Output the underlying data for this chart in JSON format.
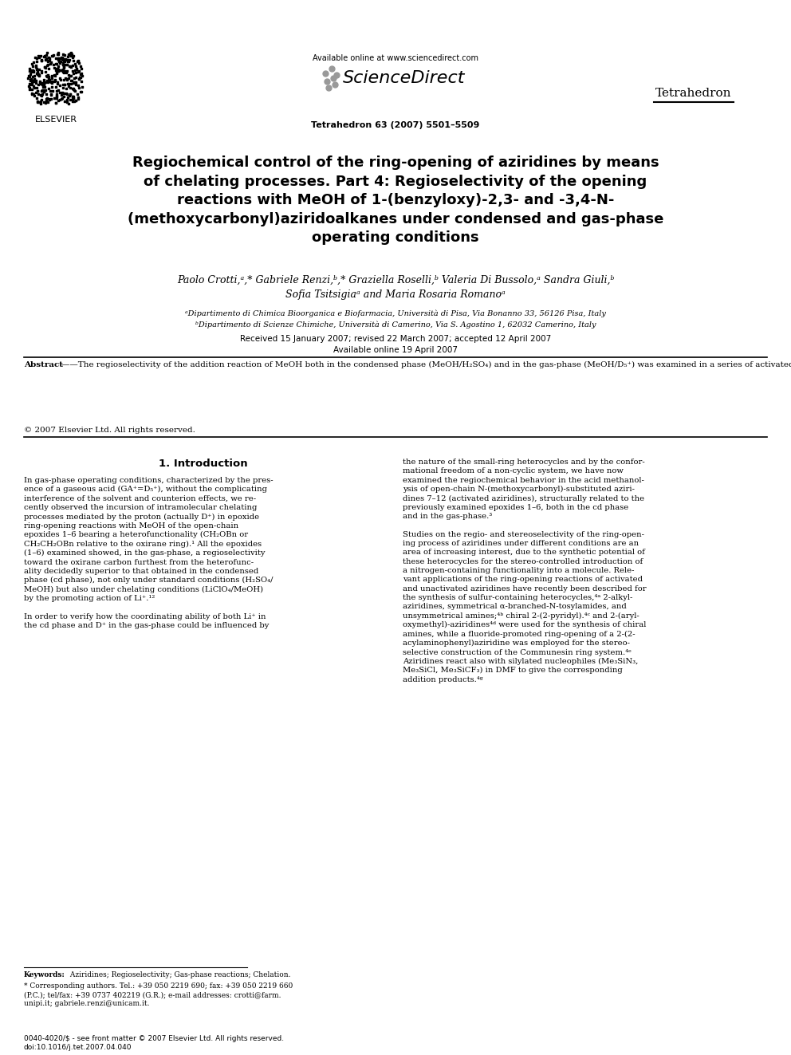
{
  "bg_color": "#ffffff",
  "page_width": 9.92,
  "page_height": 13.23,
  "dpi": 100,
  "header": {
    "available_online": "Available online at www.sciencedirect.com",
    "sciencedirect": "ScienceDirect",
    "journal_name": "Tetrahedron",
    "journal_issue": "Tetrahedron 63 (2007) 5501–5509",
    "elsevier": "ELSEVIER"
  },
  "title": "Regiochemical control of the ring-opening of aziridines by means\nof chelating processes. Part 4: Regioselectivity of the opening\nreactions with MeOH of 1-(benzyloxy)-2,3- and -3,4-⁠N-\n(methoxycarbonyl)aziridoalkanes under condensed and gas-phase\noperating conditions",
  "authors_line1": "Paolo Crotti,ᵃ,* Gabriele Renzi,ᵇ,* Graziella Roselli,ᵇ Valeria Di Bussolo,ᵃ Sandra Giuli,ᵇ",
  "authors_line2": "Sofia Tsitsigiaᵃ and Maria Rosaria Romanoᵃ",
  "affil_a": "ᵃDipartimento di Chimica Bioorganica e Biofarmacia, Università di Pisa, Via Bonanno 33, 56126 Pisa, Italy",
  "affil_b": "ᵇDipartimento di Scienze Chimiche, Università di Camerino, Via S. Agostino 1, 62032 Camerino, Italy",
  "received": "Received 15 January 2007; revised 22 March 2007; accepted 12 April 2007",
  "available": "Available online 19 April 2007",
  "abstract_bold": "Abstract",
  "abstract_text": "—The regioselectivity of the addition reaction of MeOH both in the condensed phase (MeOH/H₂SO₄) and in the gas-phase (MeOH/D₅⁺) was examined in a series of activated aziridines. The results indicate that gas-phase operating conditions are particularly favorable for the occurrence of D⁺-mediated chelated bidentate species, which influence the regioselectivity of the opening process. In the condensed phase, the chelating MeOH/LiClO₄ protocol turned out to be decidedly less effective for regioselectivity and also in determining the composition of the reaction mixture.",
  "copyright": "© 2007 Elsevier Ltd. All rights reserved.",
  "section1_title": "1. Introduction",
  "col_left_text": "In gas-phase operating conditions, characterized by the pres-\nence of a gaseous acid (GA⁺=D₅⁺), without the complicating\ninterference of the solvent and counterion effects, we re-\ncently observed the incursion of intramolecular chelating\nprocesses mediated by the proton (actually D⁺) in epoxide\nring-opening reactions with MeOH of the open-chain\nepoxides 1–6 bearing a heterofunctionality (CH₂OBn or\nCH₂CH₂OBn relative to the oxirane ring).¹ All the epoxides\n(1–6) examined showed, in the gas-phase, a regioselectivity\ntoward the oxirane carbon furthest from the heterofunc-\nality decidedly superior to that obtained in the condensed\nphase (cd phase), not only under standard conditions (H₂SO₄/\nMeOH) but also under chelating conditions (LiClO₄/MeOH)\nby the promoting action of Li⁺.¹²\n\nIn order to verify how the coordinating ability of both Li⁺ in\nthe cd phase and D⁺ in the gas-phase could be influenced by",
  "col_right_text": "the nature of the small-ring heterocycles and by the confor-\nmational freedom of a non-cyclic system, we have now\nexamined the regiochemical behavior in the acid methanol-\nysis of open-chain N-(methoxycarbonyl)-substituted aziri-\ndines 7–12 (activated aziridines), structurally related to the\npreviously examined epoxides 1–6, both in the cd phase\nand in the gas-phase.³\n\nStudies on the regio- and stereoselectivity of the ring-open-\ning process of aziridines under different conditions are an\narea of increasing interest, due to the synthetic potential of\nthese heterocycles for the stereo-controlled introduction of\na nitrogen-containing functionality into a molecule. Rele-\nvant applications of the ring-opening reactions of activated\nand unactivated aziridines have recently been described for\nthe synthesis of sulfur-containing heterocycles,⁴ᵃ 2-alkyl-\naziridines, symmetrical α-branched-N-tosylamides, and\nunsymmetrical amines;⁴ᵇ chiral 2-(2-pyridyl).⁴ᶜ and 2-(aryl-\noxymethyl)-aziridines⁴ᵈ were used for the synthesis of chiral\namines, while a fluoride-promoted ring-opening of a 2-(2-\nacylaminophenyl)aziridine was employed for the stereo-\nselective construction of the Communesin ring system.⁴ᵉ\nAziridines react also with silylated nucleophiles (Me₃SiN₃,\nMe₃SiCl, Me₃SiCF₃) in DMF to give the corresponding\naddition products.⁴ᵍ",
  "keywords_label": "Keywords:",
  "keywords_text": " Aziridines; Regioselectivity; Gas-phase reactions; Chelation.",
  "corr_star": "* Corresponding authors. Tel.: +39 050 2219 690; fax: +39 050 2219 660\n(P.C.); tel/fax: +39 0737 402219 (G.R.); e-mail addresses: crotti@farm.\nunipi.it; gabriele.renzi@unicam.it.",
  "footer": "0040-4020/$ - see front matter © 2007 Elsevier Ltd. All rights reserved.\ndoi:10.1016/j.tet.2007.04.040"
}
